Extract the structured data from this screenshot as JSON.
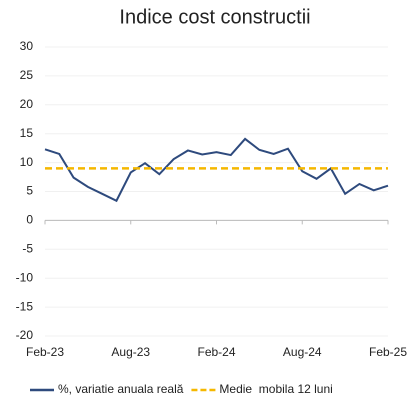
{
  "chart_data": {
    "type": "line",
    "title": "Indice cost constructii",
    "categories": [
      "Feb-23",
      null,
      null,
      null,
      null,
      null,
      "Aug-23",
      null,
      null,
      null,
      null,
      null,
      "Feb-24",
      null,
      null,
      null,
      null,
      null,
      "Aug-24",
      null,
      null,
      null,
      null,
      null,
      "Feb-25"
    ],
    "series": [
      {
        "name": "%, variatie anuala reală",
        "color": "#2e4a7d",
        "style": "solid",
        "values": [
          12.3,
          11.5,
          7.4,
          5.8,
          4.6,
          3.4,
          8.3,
          9.9,
          8.0,
          10.6,
          12.1,
          11.4,
          11.8,
          11.3,
          14.1,
          12.2,
          11.5,
          12.4,
          8.5,
          7.2,
          9.0,
          4.6,
          6.3,
          5.2,
          6.0
        ]
      },
      {
        "name": "Medie  mobila 12 luni",
        "color": "#f5b800",
        "style": "dashed",
        "values": [
          9,
          9,
          9,
          9,
          9,
          9,
          9,
          9,
          9,
          9,
          9,
          9,
          9,
          9,
          9,
          9,
          9,
          9,
          9,
          9,
          9,
          9,
          9,
          9,
          9
        ]
      }
    ],
    "ylim": [
      -20,
      30
    ],
    "yticks": [
      -20,
      -15,
      -10,
      -5,
      0,
      5,
      10,
      15,
      20,
      25,
      30
    ],
    "grid": true,
    "legend": "bottom"
  }
}
